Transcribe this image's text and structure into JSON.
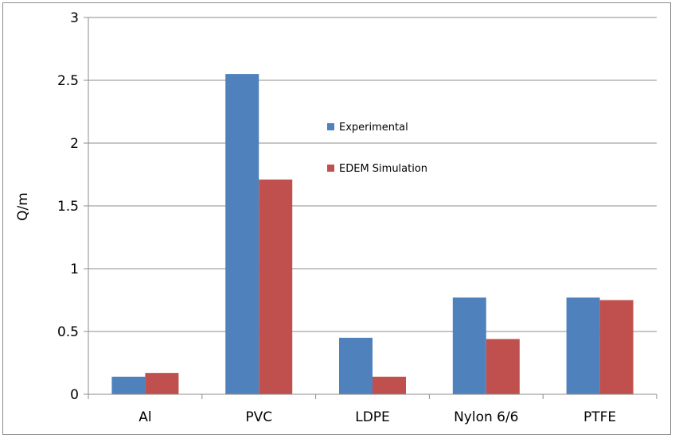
{
  "chart_data": {
    "type": "bar",
    "title": "",
    "xlabel": "",
    "ylabel": "Q/m",
    "categories": [
      "Al",
      "PVC",
      "LDPE",
      "Nylon 6/6",
      "PTFE"
    ],
    "series": [
      {
        "name": "Experimental",
        "color": "#4f81bd",
        "values": [
          0.14,
          2.55,
          0.45,
          0.77,
          0.77
        ]
      },
      {
        "name": "EDEM Simulation",
        "color": "#c0504d",
        "values": [
          0.17,
          1.71,
          0.14,
          0.44,
          0.75
        ]
      }
    ],
    "ylim": [
      0,
      3
    ],
    "yticks": [
      0,
      0.5,
      1,
      1.5,
      2,
      2.5,
      3
    ],
    "ytick_labels": [
      "0",
      "0.5",
      "1",
      "1.5",
      "2",
      "2.5",
      "3"
    ],
    "grid": true,
    "legend_position": "center-right"
  }
}
